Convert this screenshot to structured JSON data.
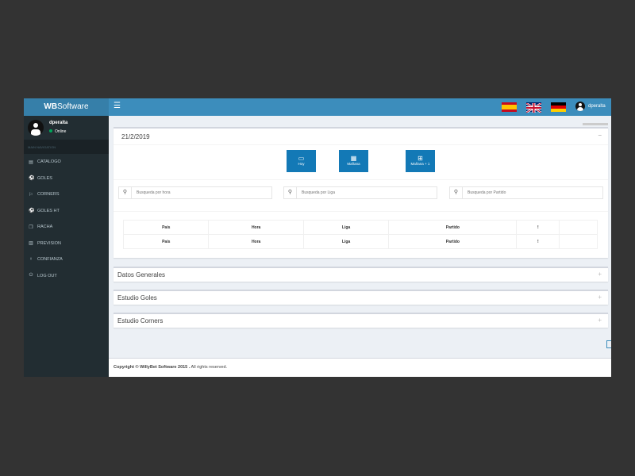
{
  "brand": {
    "bold": "WB",
    "rest": "Software"
  },
  "header": {
    "menu_icon": "hamburger-icon",
    "flags": [
      "spanish-flag",
      "english-flag",
      "german-flag"
    ],
    "username": "dperalta"
  },
  "sidebar": {
    "user": {
      "name": "dperalta",
      "status": "Online",
      "status_color": "#00a65a"
    },
    "section_header": "MAIN NAVIGATION",
    "items": [
      {
        "label": "CATALOGO",
        "icon": "book-icon",
        "glyph": "▤"
      },
      {
        "label": "GOLES",
        "icon": "soccer-ball-icon",
        "glyph": "⚽"
      },
      {
        "label": "CORNERS",
        "icon": "flag-icon",
        "glyph": "⚐"
      },
      {
        "label": "GOLES HT",
        "icon": "soccer-ball-icon",
        "glyph": "⚽"
      },
      {
        "label": "RACHA",
        "icon": "clone-icon",
        "glyph": "❐"
      },
      {
        "label": "PREVISION",
        "icon": "chart-icon",
        "glyph": "▥"
      },
      {
        "label": "CONFIANZA",
        "icon": "lightbulb-icon",
        "glyph": "♀"
      },
      {
        "label": "LOG OUT",
        "icon": "power-icon",
        "glyph": "⏻"
      }
    ]
  },
  "main": {
    "date": "21/2/2019",
    "buttons": [
      {
        "label": "Hoy",
        "glyph": "▭"
      },
      {
        "label": "Mañana",
        "glyph": "▦"
      },
      {
        "label": "Mañana + 1",
        "glyph": "⊞"
      }
    ],
    "searches": [
      {
        "placeholder": "Busqueda por hora"
      },
      {
        "placeholder": "Busqueda por Liga"
      },
      {
        "placeholder": "Busqueda por Partido"
      }
    ],
    "table": {
      "rows": [
        [
          "País",
          "Hora",
          "Liga",
          "Partido",
          "!",
          ""
        ],
        [
          "País",
          "Hora",
          "Liga",
          "Partido",
          "!",
          ""
        ]
      ]
    },
    "collapsed": [
      "Datos Generales",
      "Estudio Goles",
      "Estudio Corners"
    ]
  },
  "footer": {
    "bold": "Copyright © WillyBet Software 2015 .",
    "rest": " All rights reserved."
  },
  "colors": {
    "accent": "#3c8dbc",
    "logo": "#367fa9",
    "sidebar": "#222d32",
    "button": "#1379b6"
  }
}
